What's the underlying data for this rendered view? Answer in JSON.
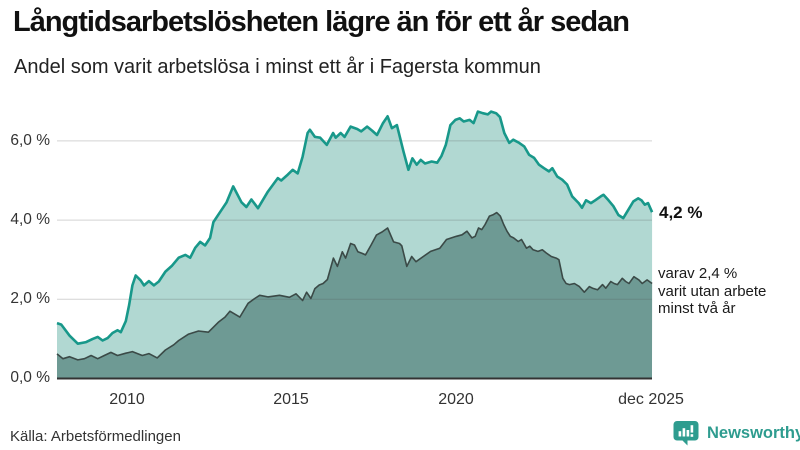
{
  "header": {
    "title": "Långtidsarbetslösheten lägre än för ett år sedan",
    "subtitle": "Andel som varit arbetslösa i minst ett år i Fagersta kommun"
  },
  "footer": {
    "source": "Källa: Arbetsförmedlingen",
    "brand": "Newsworthy"
  },
  "colors": {
    "accent_teal": "#18988a",
    "light_fill": "#b1d8d2",
    "dark_fill": "#6e9a94",
    "dark_line": "#3b4a47",
    "axis": "#333333",
    "brand_teal": "#2e9c8f"
  },
  "chart_data": {
    "type": "area",
    "title": "Långtidsarbetslösheten lägre än för ett år sedan",
    "subtitle": "Andel som varit arbetslösa i minst ett år i Fagersta kommun",
    "xlabel": "",
    "ylabel": "",
    "grid": true,
    "legend_position": "none",
    "x_axis": {
      "range": [
        2007.92,
        2025.917
      ],
      "ticks": [
        "2010",
        "2015",
        "2020",
        "dec 2025"
      ],
      "tick_values": [
        2010,
        2015,
        2020,
        2025.917
      ]
    },
    "y_axis": {
      "range": [
        0,
        6.9
      ],
      "ticks": [
        "0,0 %",
        "2,0 %",
        "4,0 %",
        "6,0 %"
      ],
      "tick_values": [
        0,
        2,
        4,
        6
      ]
    },
    "series": [
      {
        "name": "Andel arbetslösa minst ett år",
        "color": "#18988a",
        "fill": "#b1d8d2",
        "final_value": 4.2,
        "end_label": "4,2 %",
        "points": [
          [
            2007.92,
            1.4
          ],
          [
            2008.05,
            1.36
          ],
          [
            2008.3,
            1.08
          ],
          [
            2008.55,
            0.88
          ],
          [
            2008.8,
            0.92
          ],
          [
            2009.0,
            1.0
          ],
          [
            2009.15,
            1.05
          ],
          [
            2009.3,
            0.96
          ],
          [
            2009.45,
            1.02
          ],
          [
            2009.6,
            1.15
          ],
          [
            2009.75,
            1.22
          ],
          [
            2009.85,
            1.17
          ],
          [
            2010.0,
            1.45
          ],
          [
            2010.1,
            1.85
          ],
          [
            2010.2,
            2.35
          ],
          [
            2010.3,
            2.6
          ],
          [
            2010.45,
            2.48
          ],
          [
            2010.55,
            2.35
          ],
          [
            2010.7,
            2.46
          ],
          [
            2010.85,
            2.35
          ],
          [
            2011.0,
            2.45
          ],
          [
            2011.2,
            2.7
          ],
          [
            2011.4,
            2.85
          ],
          [
            2011.6,
            3.05
          ],
          [
            2011.8,
            3.12
          ],
          [
            2011.95,
            3.05
          ],
          [
            2012.1,
            3.3
          ],
          [
            2012.25,
            3.45
          ],
          [
            2012.4,
            3.36
          ],
          [
            2012.55,
            3.55
          ],
          [
            2012.65,
            3.95
          ],
          [
            2012.85,
            4.2
          ],
          [
            2013.05,
            4.45
          ],
          [
            2013.25,
            4.85
          ],
          [
            2013.5,
            4.45
          ],
          [
            2013.65,
            4.33
          ],
          [
            2013.8,
            4.52
          ],
          [
            2014.0,
            4.3
          ],
          [
            2014.3,
            4.72
          ],
          [
            2014.6,
            5.06
          ],
          [
            2014.7,
            5.0
          ],
          [
            2014.9,
            5.15
          ],
          [
            2015.05,
            5.27
          ],
          [
            2015.2,
            5.18
          ],
          [
            2015.35,
            5.6
          ],
          [
            2015.5,
            6.2
          ],
          [
            2015.57,
            6.28
          ],
          [
            2015.72,
            6.1
          ],
          [
            2015.88,
            6.08
          ],
          [
            2016.08,
            5.9
          ],
          [
            2016.27,
            6.2
          ],
          [
            2016.35,
            6.08
          ],
          [
            2016.5,
            6.2
          ],
          [
            2016.62,
            6.1
          ],
          [
            2016.8,
            6.36
          ],
          [
            2017.0,
            6.3
          ],
          [
            2017.12,
            6.24
          ],
          [
            2017.3,
            6.36
          ],
          [
            2017.45,
            6.26
          ],
          [
            2017.6,
            6.15
          ],
          [
            2017.78,
            6.45
          ],
          [
            2017.92,
            6.62
          ],
          [
            2018.05,
            6.32
          ],
          [
            2018.2,
            6.4
          ],
          [
            2018.4,
            5.73
          ],
          [
            2018.55,
            5.27
          ],
          [
            2018.67,
            5.56
          ],
          [
            2018.8,
            5.4
          ],
          [
            2018.92,
            5.52
          ],
          [
            2019.05,
            5.43
          ],
          [
            2019.25,
            5.48
          ],
          [
            2019.42,
            5.45
          ],
          [
            2019.55,
            5.62
          ],
          [
            2019.68,
            5.9
          ],
          [
            2019.82,
            6.4
          ],
          [
            2019.97,
            6.53
          ],
          [
            2020.1,
            6.57
          ],
          [
            2020.22,
            6.49
          ],
          [
            2020.4,
            6.53
          ],
          [
            2020.52,
            6.45
          ],
          [
            2020.65,
            6.74
          ],
          [
            2020.8,
            6.7
          ],
          [
            2020.95,
            6.67
          ],
          [
            2021.05,
            6.74
          ],
          [
            2021.2,
            6.7
          ],
          [
            2021.32,
            6.6
          ],
          [
            2021.45,
            6.2
          ],
          [
            2021.6,
            5.95
          ],
          [
            2021.72,
            6.03
          ],
          [
            2021.9,
            5.95
          ],
          [
            2022.05,
            5.86
          ],
          [
            2022.2,
            5.65
          ],
          [
            2022.35,
            5.57
          ],
          [
            2022.5,
            5.4
          ],
          [
            2022.65,
            5.31
          ],
          [
            2022.8,
            5.23
          ],
          [
            2022.9,
            5.31
          ],
          [
            2023.05,
            5.1
          ],
          [
            2023.2,
            5.02
          ],
          [
            2023.35,
            4.9
          ],
          [
            2023.5,
            4.6
          ],
          [
            2023.7,
            4.43
          ],
          [
            2023.8,
            4.31
          ],
          [
            2023.92,
            4.5
          ],
          [
            2024.07,
            4.43
          ],
          [
            2024.2,
            4.5
          ],
          [
            2024.37,
            4.6
          ],
          [
            2024.45,
            4.64
          ],
          [
            2024.6,
            4.5
          ],
          [
            2024.75,
            4.35
          ],
          [
            2024.9,
            4.13
          ],
          [
            2025.05,
            4.05
          ],
          [
            2025.2,
            4.26
          ],
          [
            2025.35,
            4.47
          ],
          [
            2025.5,
            4.55
          ],
          [
            2025.6,
            4.5
          ],
          [
            2025.7,
            4.39
          ],
          [
            2025.8,
            4.43
          ],
          [
            2025.92,
            4.2
          ]
        ]
      },
      {
        "name": "Varav utan arbete minst två år",
        "color": "#3b4a47",
        "fill": "#6e9a94",
        "final_value": 2.4,
        "end_label": "varav 2,4 % varit utan arbete minst två år",
        "points": [
          [
            2007.92,
            0.62
          ],
          [
            2008.1,
            0.5
          ],
          [
            2008.3,
            0.55
          ],
          [
            2008.55,
            0.47
          ],
          [
            2008.75,
            0.5
          ],
          [
            2008.95,
            0.58
          ],
          [
            2009.15,
            0.5
          ],
          [
            2009.35,
            0.58
          ],
          [
            2009.55,
            0.66
          ],
          [
            2009.75,
            0.58
          ],
          [
            2010.0,
            0.64
          ],
          [
            2010.2,
            0.68
          ],
          [
            2010.5,
            0.58
          ],
          [
            2010.7,
            0.63
          ],
          [
            2010.95,
            0.52
          ],
          [
            2011.2,
            0.72
          ],
          [
            2011.45,
            0.85
          ],
          [
            2011.6,
            0.96
          ],
          [
            2011.9,
            1.12
          ],
          [
            2012.2,
            1.2
          ],
          [
            2012.5,
            1.17
          ],
          [
            2012.8,
            1.42
          ],
          [
            2013.0,
            1.55
          ],
          [
            2013.15,
            1.7
          ],
          [
            2013.45,
            1.55
          ],
          [
            2013.7,
            1.9
          ],
          [
            2013.9,
            2.02
          ],
          [
            2014.05,
            2.1
          ],
          [
            2014.3,
            2.06
          ],
          [
            2014.65,
            2.1
          ],
          [
            2014.95,
            2.05
          ],
          [
            2015.15,
            2.14
          ],
          [
            2015.35,
            1.97
          ],
          [
            2015.47,
            2.18
          ],
          [
            2015.6,
            2.02
          ],
          [
            2015.72,
            2.27
          ],
          [
            2015.85,
            2.36
          ],
          [
            2015.97,
            2.4
          ],
          [
            2016.1,
            2.5
          ],
          [
            2016.28,
            3.04
          ],
          [
            2016.4,
            2.83
          ],
          [
            2016.55,
            3.2
          ],
          [
            2016.65,
            3.04
          ],
          [
            2016.8,
            3.41
          ],
          [
            2016.92,
            3.37
          ],
          [
            2017.02,
            3.2
          ],
          [
            2017.15,
            3.16
          ],
          [
            2017.25,
            3.12
          ],
          [
            2017.42,
            3.37
          ],
          [
            2017.58,
            3.62
          ],
          [
            2017.75,
            3.7
          ],
          [
            2017.92,
            3.8
          ],
          [
            2018.1,
            3.45
          ],
          [
            2018.28,
            3.41
          ],
          [
            2018.35,
            3.35
          ],
          [
            2018.5,
            2.83
          ],
          [
            2018.65,
            3.08
          ],
          [
            2018.78,
            2.95
          ],
          [
            2019.0,
            3.08
          ],
          [
            2019.22,
            3.21
          ],
          [
            2019.5,
            3.29
          ],
          [
            2019.7,
            3.51
          ],
          [
            2019.85,
            3.55
          ],
          [
            2020.0,
            3.59
          ],
          [
            2020.17,
            3.63
          ],
          [
            2020.32,
            3.72
          ],
          [
            2020.47,
            3.55
          ],
          [
            2020.57,
            3.59
          ],
          [
            2020.67,
            3.8
          ],
          [
            2020.77,
            3.76
          ],
          [
            2020.87,
            3.89
          ],
          [
            2021.0,
            4.1
          ],
          [
            2021.12,
            4.14
          ],
          [
            2021.22,
            4.19
          ],
          [
            2021.33,
            4.1
          ],
          [
            2021.43,
            3.89
          ],
          [
            2021.53,
            3.72
          ],
          [
            2021.63,
            3.59
          ],
          [
            2021.73,
            3.55
          ],
          [
            2021.87,
            3.46
          ],
          [
            2021.97,
            3.51
          ],
          [
            2022.12,
            3.29
          ],
          [
            2022.22,
            3.34
          ],
          [
            2022.32,
            3.25
          ],
          [
            2022.47,
            3.21
          ],
          [
            2022.6,
            3.25
          ],
          [
            2022.72,
            3.17
          ],
          [
            2022.87,
            3.08
          ],
          [
            2023.02,
            3.04
          ],
          [
            2023.1,
            3.0
          ],
          [
            2023.22,
            2.53
          ],
          [
            2023.32,
            2.4
          ],
          [
            2023.42,
            2.37
          ],
          [
            2023.57,
            2.4
          ],
          [
            2023.72,
            2.32
          ],
          [
            2023.87,
            2.18
          ],
          [
            2024.02,
            2.32
          ],
          [
            2024.12,
            2.28
          ],
          [
            2024.27,
            2.24
          ],
          [
            2024.42,
            2.37
          ],
          [
            2024.52,
            2.28
          ],
          [
            2024.67,
            2.45
          ],
          [
            2024.77,
            2.4
          ],
          [
            2024.87,
            2.37
          ],
          [
            2025.02,
            2.53
          ],
          [
            2025.12,
            2.45
          ],
          [
            2025.22,
            2.4
          ],
          [
            2025.37,
            2.57
          ],
          [
            2025.52,
            2.49
          ],
          [
            2025.62,
            2.4
          ],
          [
            2025.77,
            2.49
          ],
          [
            2025.92,
            2.4
          ]
        ]
      }
    ],
    "annotations": {
      "primary": {
        "text": "4,2 %"
      },
      "secondary": {
        "lines": [
          "varav 2,4 %",
          "varit utan arbete",
          "minst två år"
        ]
      }
    }
  }
}
